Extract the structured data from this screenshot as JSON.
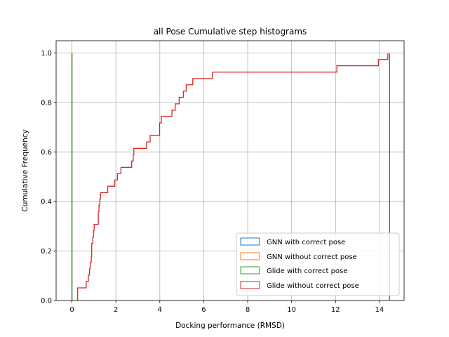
{
  "chart_data": {
    "type": "step",
    "title": "all Pose Cumulative step histograms",
    "xlabel": "Docking performance (RMSD)",
    "ylabel": "Cumulative Frequency",
    "xlim": [
      -0.72,
      15.12
    ],
    "ylim": [
      0,
      1.05
    ],
    "xticks": [
      0,
      2,
      4,
      6,
      8,
      10,
      12,
      14
    ],
    "yticks": [
      0.0,
      0.2,
      0.4,
      0.6,
      0.8,
      1.0
    ],
    "xtick_labels": [
      "0",
      "2",
      "4",
      "6",
      "8",
      "10",
      "12",
      "14"
    ],
    "ytick_labels": [
      "0.0",
      "0.2",
      "0.4",
      "0.6",
      "0.8",
      "1.0"
    ],
    "grid": true,
    "legend_position": "bottom-right",
    "series": [
      {
        "name": "GNN with correct pose",
        "color": "#1f77b4",
        "points": [
          [
            0,
            0
          ],
          [
            0,
            1.0
          ]
        ]
      },
      {
        "name": "GNN without correct pose",
        "color": "#ff7f0e",
        "points": [
          [
            0,
            0
          ],
          [
            0,
            1.0
          ]
        ]
      },
      {
        "name": "Glide with correct pose",
        "color": "#2ca02c",
        "points": [
          [
            0,
            0
          ],
          [
            0,
            1.0
          ]
        ]
      },
      {
        "name": "Glide without correct pose",
        "color": "#d62728",
        "points": [
          [
            0.26,
            0
          ],
          [
            0.26,
            0.051
          ],
          [
            0.65,
            0.051
          ],
          [
            0.65,
            0.077
          ],
          [
            0.75,
            0.077
          ],
          [
            0.75,
            0.103
          ],
          [
            0.8,
            0.103
          ],
          [
            0.8,
            0.128
          ],
          [
            0.83,
            0.128
          ],
          [
            0.83,
            0.154
          ],
          [
            0.88,
            0.154
          ],
          [
            0.88,
            0.179
          ],
          [
            0.9,
            0.179
          ],
          [
            0.9,
            0.231
          ],
          [
            0.95,
            0.231
          ],
          [
            0.95,
            0.256
          ],
          [
            0.98,
            0.256
          ],
          [
            0.98,
            0.282
          ],
          [
            1.01,
            0.282
          ],
          [
            1.01,
            0.308
          ],
          [
            1.2,
            0.308
          ],
          [
            1.2,
            0.359
          ],
          [
            1.23,
            0.359
          ],
          [
            1.23,
            0.385
          ],
          [
            1.27,
            0.385
          ],
          [
            1.27,
            0.41
          ],
          [
            1.3,
            0.41
          ],
          [
            1.3,
            0.436
          ],
          [
            1.63,
            0.436
          ],
          [
            1.63,
            0.462
          ],
          [
            1.95,
            0.462
          ],
          [
            1.95,
            0.487
          ],
          [
            2.07,
            0.487
          ],
          [
            2.07,
            0.513
          ],
          [
            2.23,
            0.513
          ],
          [
            2.23,
            0.538
          ],
          [
            2.72,
            0.538
          ],
          [
            2.72,
            0.564
          ],
          [
            2.79,
            0.564
          ],
          [
            2.79,
            0.59
          ],
          [
            2.82,
            0.59
          ],
          [
            2.82,
            0.615
          ],
          [
            3.4,
            0.615
          ],
          [
            3.4,
            0.641
          ],
          [
            3.56,
            0.641
          ],
          [
            3.56,
            0.667
          ],
          [
            3.99,
            0.667
          ],
          [
            3.99,
            0.718
          ],
          [
            4.07,
            0.718
          ],
          [
            4.07,
            0.744
          ],
          [
            4.55,
            0.744
          ],
          [
            4.55,
            0.769
          ],
          [
            4.7,
            0.769
          ],
          [
            4.7,
            0.795
          ],
          [
            4.88,
            0.795
          ],
          [
            4.88,
            0.821
          ],
          [
            5.07,
            0.821
          ],
          [
            5.07,
            0.846
          ],
          [
            5.2,
            0.846
          ],
          [
            5.2,
            0.872
          ],
          [
            5.5,
            0.872
          ],
          [
            5.5,
            0.897
          ],
          [
            6.4,
            0.897
          ],
          [
            6.4,
            0.923
          ],
          [
            12.06,
            0.923
          ],
          [
            12.06,
            0.949
          ],
          [
            13.95,
            0.949
          ],
          [
            13.95,
            0.974
          ],
          [
            14.38,
            0.974
          ],
          [
            14.38,
            1.0
          ]
        ],
        "right_edge": [
          14.38,
          0.0,
          1.0
        ]
      }
    ]
  }
}
